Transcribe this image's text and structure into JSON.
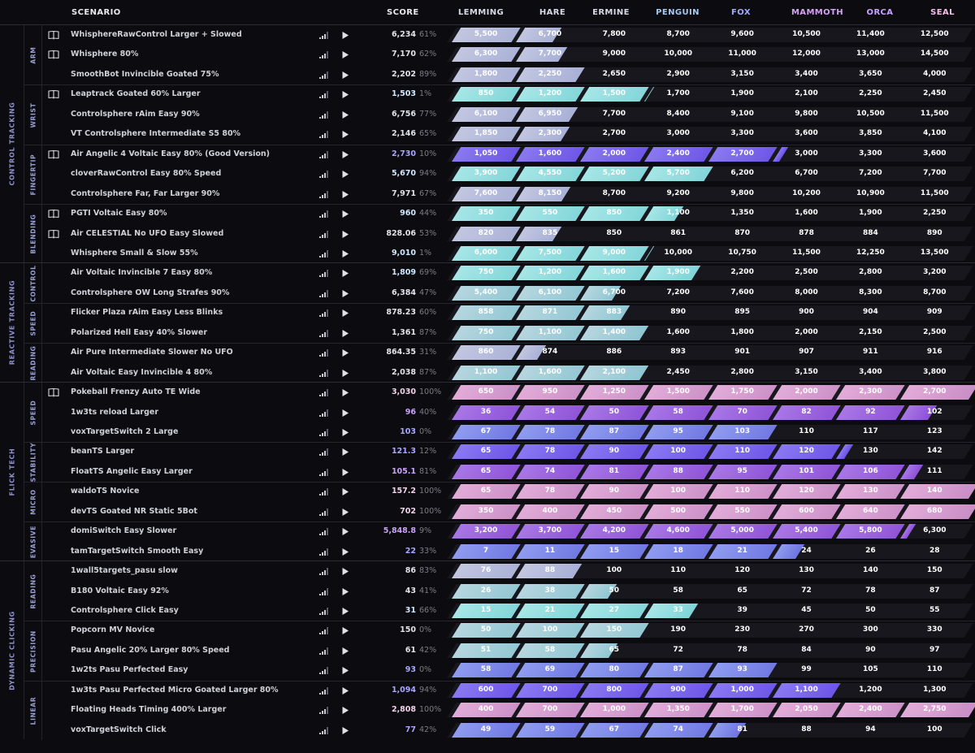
{
  "header": {
    "scenario": "SCENARIO",
    "score": "SCORE"
  },
  "ranks": [
    {
      "label": "LEMMING",
      "color": "#d6d8e6"
    },
    {
      "label": "HARE",
      "color": "#d6d8e6"
    },
    {
      "label": "ERMINE",
      "color": "#d6d8e6"
    },
    {
      "label": "PENGUIN",
      "color": "#a6c8f0"
    },
    {
      "label": "FOX",
      "color": "#a2a8ff"
    },
    {
      "label": "MAMMOTH",
      "color": "#d3a2f2"
    },
    {
      "label": "ORCA",
      "color": "#c7a2ff"
    },
    {
      "label": "SEAL",
      "color": "#f2c0e6"
    }
  ],
  "fill_colors": {
    "lemming": "#cfd2e6",
    "hare": "#c9cfe2",
    "ermine": "#b5d9dc",
    "penguin": "#9fe3e2",
    "fox": "#9ea8ec",
    "mammoth": "#7d6bf2",
    "orca": "#a267de",
    "seal": "#d9a6d4"
  },
  "icons": {
    "book": "book-icon",
    "signal": "signal-icon",
    "play": "play-icon"
  },
  "groups": [
    {
      "label": "CONTROL TRACKING",
      "subs": [
        {
          "label": "ARM",
          "rows": [
            {
              "name": "WhisphereRawControl Larger + Slowed",
              "book": true,
              "score": "6,234",
              "pct": "61%",
              "thresholds": [
                "5,500",
                "6,700",
                "7,800",
                "8,700",
                "9,600",
                "10,500",
                "11,400",
                "12,500"
              ],
              "progress": 1.53,
              "rank": "hare"
            },
            {
              "name": "Whisphere 80%",
              "book": true,
              "score": "7,170",
              "pct": "62%",
              "thresholds": [
                "6,300",
                "7,700",
                "9,000",
                "10,000",
                "11,000",
                "12,000",
                "13,000",
                "14,500"
              ],
              "progress": 1.62,
              "rank": "hare"
            },
            {
              "name": "SmoothBot Invincible Goated 75%",
              "book": false,
              "score": "2,202",
              "pct": "89%",
              "thresholds": [
                "1,800",
                "2,250",
                "2,650",
                "2,900",
                "3,150",
                "3,400",
                "3,650",
                "4,000"
              ],
              "progress": 1.89,
              "rank": "hare"
            }
          ]
        },
        {
          "label": "WRIST",
          "rows": [
            {
              "name": "Leaptrack Goated 60% Larger",
              "book": true,
              "score": "1,503",
              "pct": "1%",
              "thresholds": [
                "850",
                "1,200",
                "1,500",
                "1,700",
                "1,900",
                "2,100",
                "2,250",
                "2,450"
              ],
              "progress": 3.01,
              "rank": "penguin"
            },
            {
              "name": "Controlsphere rAim Easy 90%",
              "book": false,
              "score": "6,756",
              "pct": "77%",
              "thresholds": [
                "6,100",
                "6,950",
                "7,700",
                "8,400",
                "9,100",
                "9,800",
                "10,500",
                "11,500"
              ],
              "progress": 1.77,
              "rank": "hare"
            },
            {
              "name": "VT Controlsphere Intermediate S5 80%",
              "book": false,
              "score": "2,146",
              "pct": "65%",
              "thresholds": [
                "1,850",
                "2,300",
                "2,700",
                "3,000",
                "3,300",
                "3,600",
                "3,850",
                "4,100"
              ],
              "progress": 1.65,
              "rank": "hare"
            }
          ]
        },
        {
          "label": "FINGERTIP",
          "rows": [
            {
              "name": "Air Angelic 4 Voltaic Easy 80% (Good Version)",
              "book": true,
              "score": "2,730",
              "pct": "10%",
              "thresholds": [
                "1,050",
                "1,600",
                "2,000",
                "2,400",
                "2,700",
                "3,000",
                "3,300",
                "3,600"
              ],
              "progress": 5.1,
              "rank": "mammoth"
            },
            {
              "name": "cloverRawControl Easy 80% Speed",
              "book": false,
              "score": "5,670",
              "pct": "94%",
              "thresholds": [
                "3,900",
                "4,550",
                "5,200",
                "5,700",
                "6,200",
                "6,700",
                "7,200",
                "7,700"
              ],
              "progress": 3.94,
              "rank": "penguin"
            },
            {
              "name": "Controlsphere Far, Far Larger 90%",
              "book": false,
              "score": "7,971",
              "pct": "67%",
              "thresholds": [
                "7,600",
                "8,150",
                "8,700",
                "9,200",
                "9,800",
                "10,200",
                "10,900",
                "11,500"
              ],
              "progress": 1.67,
              "rank": "hare"
            }
          ]
        },
        {
          "label": "BLENDING",
          "rows": [
            {
              "name": "PGTI Voltaic Easy 80%",
              "book": true,
              "score": "960",
              "pct": "44%",
              "thresholds": [
                "350",
                "550",
                "850",
                "1,100",
                "1,350",
                "1,600",
                "1,900",
                "2,250"
              ],
              "progress": 3.44,
              "rank": "penguin"
            },
            {
              "name": "Air CELESTIAL No UFO Easy Slowed",
              "book": true,
              "score": "828.06",
              "pct": "53%",
              "thresholds": [
                "820",
                "835",
                "850",
                "861",
                "870",
                "878",
                "884",
                "890"
              ],
              "progress": 1.53,
              "rank": "hare"
            },
            {
              "name": "Whisphere Small & Slow 55%",
              "book": false,
              "score": "9,010",
              "pct": "1%",
              "thresholds": [
                "6,000",
                "7,500",
                "9,000",
                "10,000",
                "10,750",
                "11,500",
                "12,250",
                "13,500"
              ],
              "progress": 3.01,
              "rank": "penguin"
            }
          ]
        }
      ]
    },
    {
      "label": "REACTIVE TRACKING",
      "subs": [
        {
          "label": "CONTROL",
          "rows": [
            {
              "name": "Air Voltaic Invincible 7 Easy 80%",
              "book": false,
              "score": "1,809",
              "pct": "69%",
              "thresholds": [
                "750",
                "1,200",
                "1,600",
                "1,900",
                "2,200",
                "2,500",
                "2,800",
                "3,200"
              ],
              "progress": 3.69,
              "rank": "penguin"
            },
            {
              "name": "Controlsphere OW Long Strafes 90%",
              "book": false,
              "score": "6,384",
              "pct": "47%",
              "thresholds": [
                "5,400",
                "6,100",
                "6,700",
                "7,200",
                "7,600",
                "8,000",
                "8,300",
                "8,700"
              ],
              "progress": 2.47,
              "rank": "ermine"
            }
          ]
        },
        {
          "label": "SPEED",
          "rows": [
            {
              "name": "Flicker Plaza rAim Easy Less Blinks",
              "book": false,
              "score": "878.23",
              "pct": "60%",
              "thresholds": [
                "858",
                "871",
                "883",
                "890",
                "895",
                "900",
                "904",
                "909"
              ],
              "progress": 2.6,
              "rank": "ermine"
            },
            {
              "name": "Polarized Hell Easy 40% Slower",
              "book": false,
              "score": "1,361",
              "pct": "87%",
              "thresholds": [
                "750",
                "1,100",
                "1,400",
                "1,600",
                "1,800",
                "2,000",
                "2,150",
                "2,500"
              ],
              "progress": 2.87,
              "rank": "ermine"
            }
          ]
        },
        {
          "label": "READING",
          "rows": [
            {
              "name": "Air Pure Intermediate Slower No UFO",
              "book": false,
              "score": "864.35",
              "pct": "31%",
              "thresholds": [
                "860",
                "874",
                "886",
                "893",
                "901",
                "907",
                "911",
                "916"
              ],
              "progress": 1.31,
              "rank": "hare"
            },
            {
              "name": "Air Voltaic Easy Invincible 4 80%",
              "book": false,
              "score": "2,038",
              "pct": "87%",
              "thresholds": [
                "1,100",
                "1,600",
                "2,100",
                "2,450",
                "2,800",
                "3,150",
                "3,400",
                "3,800"
              ],
              "progress": 2.87,
              "rank": "ermine"
            }
          ]
        }
      ]
    },
    {
      "label": "FLICK TECH",
      "subs": [
        {
          "label": "SPEED",
          "rows": [
            {
              "name": "Pokeball Frenzy Auto TE Wide",
              "book": true,
              "score": "3,030",
              "pct": "100%",
              "thresholds": [
                "650",
                "950",
                "1,250",
                "1,500",
                "1,750",
                "2,000",
                "2,300",
                "2,700"
              ],
              "progress": 8.0,
              "rank": "seal"
            },
            {
              "name": "1w3ts reload Larger",
              "book": false,
              "score": "96",
              "pct": "40%",
              "thresholds": [
                "36",
                "54",
                "50",
                "58",
                "70",
                "82",
                "92",
                "102"
              ],
              "progress": 7.4,
              "rank": "orca"
            },
            {
              "name": "voxTargetSwitch 2 Large",
              "book": false,
              "score": "103",
              "pct": "0%",
              "thresholds": [
                "67",
                "78",
                "87",
                "95",
                "103",
                "110",
                "117",
                "123"
              ],
              "progress": 5.0,
              "rank": "fox"
            }
          ]
        },
        {
          "label": "STABILITY",
          "rows": [
            {
              "name": "beanTS Larger",
              "book": false,
              "score": "121.3",
              "pct": "12%",
              "thresholds": [
                "65",
                "78",
                "90",
                "100",
                "110",
                "120",
                "130",
                "142"
              ],
              "progress": 6.12,
              "rank": "mammoth"
            },
            {
              "name": "FloatTS Angelic Easy Larger",
              "book": false,
              "score": "105.1",
              "pct": "81%",
              "thresholds": [
                "65",
                "74",
                "81",
                "88",
                "95",
                "101",
                "106",
                "111"
              ],
              "progress": 7.2,
              "rank": "orca"
            }
          ]
        },
        {
          "label": "MICRO",
          "rows": [
            {
              "name": "waldoTS Novice",
              "book": false,
              "score": "157.2",
              "pct": "100%",
              "thresholds": [
                "65",
                "78",
                "90",
                "100",
                "110",
                "120",
                "130",
                "140"
              ],
              "progress": 8.0,
              "rank": "seal"
            },
            {
              "name": "devTS Goated NR Static 5Bot",
              "book": false,
              "score": "702",
              "pct": "100%",
              "thresholds": [
                "350",
                "400",
                "450",
                "500",
                "550",
                "600",
                "640",
                "680"
              ],
              "progress": 8.0,
              "rank": "seal"
            }
          ]
        },
        {
          "label": "EVASIVE",
          "rows": [
            {
              "name": "domiSwitch Easy Slower",
              "book": false,
              "score": "5,848.8",
              "pct": "9%",
              "thresholds": [
                "3,200",
                "3,700",
                "4,200",
                "4,600",
                "5,000",
                "5,400",
                "5,800",
                "6,300"
              ],
              "progress": 7.09,
              "rank": "orca"
            },
            {
              "name": "tamTargetSwitch Smooth Easy",
              "book": false,
              "score": "22",
              "pct": "33%",
              "thresholds": [
                "7",
                "11",
                "15",
                "18",
                "21",
                "24",
                "26",
                "28"
              ],
              "progress": 5.33,
              "rank": "fox"
            }
          ]
        }
      ]
    },
    {
      "label": "DYNAMIC CLICKING",
      "subs": [
        {
          "label": "READING",
          "rows": [
            {
              "name": "1wall5targets_pasu slow",
              "book": false,
              "score": "86",
              "pct": "83%",
              "thresholds": [
                "76",
                "88",
                "100",
                "110",
                "120",
                "130",
                "140",
                "150"
              ],
              "progress": 1.83,
              "rank": "hare"
            },
            {
              "name": "B180 Voltaic Easy 92%",
              "book": false,
              "score": "43",
              "pct": "41%",
              "thresholds": [
                "26",
                "38",
                "50",
                "58",
                "65",
                "72",
                "78",
                "87"
              ],
              "progress": 2.41,
              "rank": "ermine"
            },
            {
              "name": "Controlsphere Click Easy",
              "book": false,
              "score": "31",
              "pct": "66%",
              "thresholds": [
                "15",
                "21",
                "27",
                "33",
                "39",
                "45",
                "50",
                "55"
              ],
              "progress": 3.66,
              "rank": "penguin"
            }
          ]
        },
        {
          "label": "PRECISION",
          "rows": [
            {
              "name": "Popcorn MV Novice",
              "book": false,
              "score": "150",
              "pct": "0%",
              "thresholds": [
                "50",
                "100",
                "150",
                "190",
                "230",
                "270",
                "300",
                "330"
              ],
              "progress": 3.0,
              "rank": "ermine"
            },
            {
              "name": "Pasu Angelic 20% Larger 80% Speed",
              "book": false,
              "score": "61",
              "pct": "42%",
              "thresholds": [
                "51",
                "58",
                "65",
                "72",
                "78",
                "84",
                "90",
                "97"
              ],
              "progress": 2.42,
              "rank": "ermine"
            },
            {
              "name": "1w2ts Pasu Perfected Easy",
              "book": false,
              "score": "93",
              "pct": "0%",
              "thresholds": [
                "58",
                "69",
                "80",
                "87",
                "93",
                "99",
                "105",
                "110"
              ],
              "progress": 5.0,
              "rank": "fox"
            }
          ]
        },
        {
          "label": "LINEAR",
          "rows": [
            {
              "name": "1w3ts Pasu Perfected Micro Goated Larger 80%",
              "book": false,
              "score": "1,094",
              "pct": "94%",
              "thresholds": [
                "600",
                "700",
                "800",
                "900",
                "1,000",
                "1,100",
                "1,200",
                "1,300"
              ],
              "progress": 5.94,
              "rank": "mammoth"
            },
            {
              "name": "Floating Heads Timing 400% Larger",
              "book": false,
              "score": "2,808",
              "pct": "100%",
              "thresholds": [
                "400",
                "700",
                "1,000",
                "1,350",
                "1,700",
                "2,050",
                "2,400",
                "2,750"
              ],
              "progress": 8.0,
              "rank": "seal"
            },
            {
              "name": "voxTargetSwitch Click",
              "book": false,
              "score": "77",
              "pct": "42%",
              "thresholds": [
                "49",
                "59",
                "67",
                "74",
                "81",
                "88",
                "94",
                "100"
              ],
              "progress": 4.42,
              "rank": "fox"
            }
          ]
        }
      ]
    }
  ]
}
